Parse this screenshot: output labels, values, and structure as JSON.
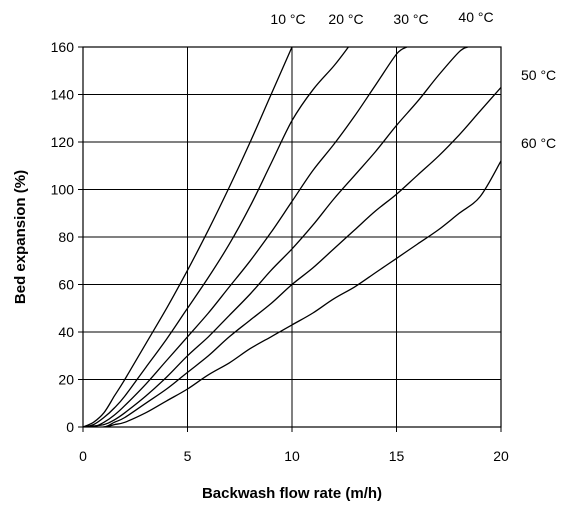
{
  "chart_data": {
    "type": "line",
    "title": "",
    "xlabel": "Backwash flow rate (m/h)",
    "ylabel": "Bed expansion (%)",
    "xlim": [
      0,
      20
    ],
    "ylim": [
      0,
      160
    ],
    "xticks": [
      0,
      5,
      10,
      15,
      20
    ],
    "yticks": [
      0,
      20,
      40,
      60,
      80,
      100,
      120,
      140,
      160
    ],
    "grid": true,
    "series": [
      {
        "name": "10 °C",
        "x": [
          0,
          0.5,
          1,
          1.5,
          2,
          3,
          4,
          5,
          6,
          7,
          8,
          9,
          10
        ],
        "y": [
          0,
          2,
          6,
          13,
          20,
          35,
          50,
          66,
          83,
          101,
          120,
          140,
          160
        ]
      },
      {
        "name": "20 °C",
        "x": [
          0,
          0.5,
          1,
          1.5,
          2,
          3,
          4,
          5,
          6,
          7,
          8,
          9,
          10,
          11,
          12,
          12.7
        ],
        "y": [
          0,
          1,
          4,
          8,
          13,
          25,
          37,
          50,
          63,
          77,
          93,
          111,
          129,
          142,
          152,
          160
        ]
      },
      {
        "name": "30 °C",
        "x": [
          0,
          0.5,
          1,
          1.5,
          2,
          3,
          4,
          5,
          6,
          7,
          8,
          9,
          10,
          11,
          12,
          13,
          14,
          15,
          15.5
        ],
        "y": [
          0,
          0,
          2,
          5,
          9,
          18,
          28,
          38,
          48,
          59,
          70,
          82,
          95,
          108,
          119,
          131,
          144,
          157,
          160
        ]
      },
      {
        "name": "40 °C",
        "x": [
          0,
          1,
          1.5,
          2,
          3,
          4,
          5,
          6,
          7,
          8,
          9,
          10,
          11,
          12,
          13,
          14,
          15,
          16,
          17,
          18,
          18.4
        ],
        "y": [
          0,
          1,
          3,
          6,
          13,
          21,
          30,
          38,
          47,
          56,
          66,
          75,
          85,
          96,
          106,
          116,
          127,
          137,
          148,
          158,
          160
        ]
      },
      {
        "name": "50 °C",
        "x": [
          0,
          1,
          1.5,
          2,
          3,
          4,
          5,
          6,
          7,
          8,
          9,
          10,
          11,
          12,
          13,
          14,
          15,
          16,
          17,
          18,
          19,
          20
        ],
        "y": [
          0,
          0,
          2,
          4,
          10,
          16,
          23,
          30,
          38,
          45,
          52,
          60,
          67,
          75,
          83,
          91,
          98,
          106,
          114,
          123,
          133,
          143
        ]
      },
      {
        "name": "60 °C",
        "x": [
          0,
          1,
          1.5,
          2,
          3,
          4,
          5,
          6,
          7,
          8,
          9,
          10,
          11,
          12,
          13,
          14,
          15,
          16,
          17,
          18,
          19,
          20
        ],
        "y": [
          0,
          0,
          1,
          2,
          6,
          11,
          16,
          22,
          27,
          33,
          38,
          43,
          48,
          54,
          59,
          65,
          71,
          77,
          83,
          90,
          97,
          112
        ]
      }
    ]
  }
}
